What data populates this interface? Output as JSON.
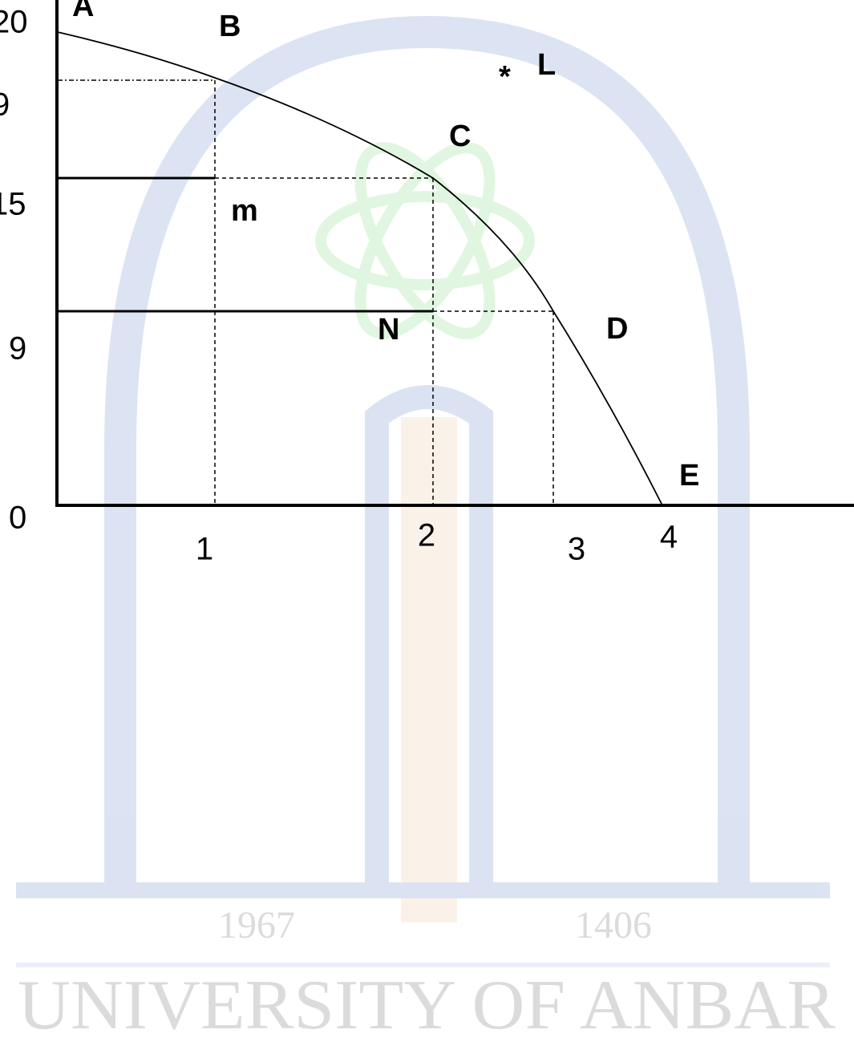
{
  "diagram": {
    "points": [
      "A",
      "B",
      "C",
      "D",
      "E",
      "L",
      "m",
      "N"
    ],
    "star": "*",
    "y_labels": [
      "20",
      "9",
      "15",
      "9",
      "0"
    ],
    "x_labels": [
      "1",
      "2",
      "3",
      "4"
    ]
  },
  "watermark": {
    "text": "UNIVERSITY OF ANBAR",
    "years": [
      "1967",
      "1406"
    ]
  }
}
